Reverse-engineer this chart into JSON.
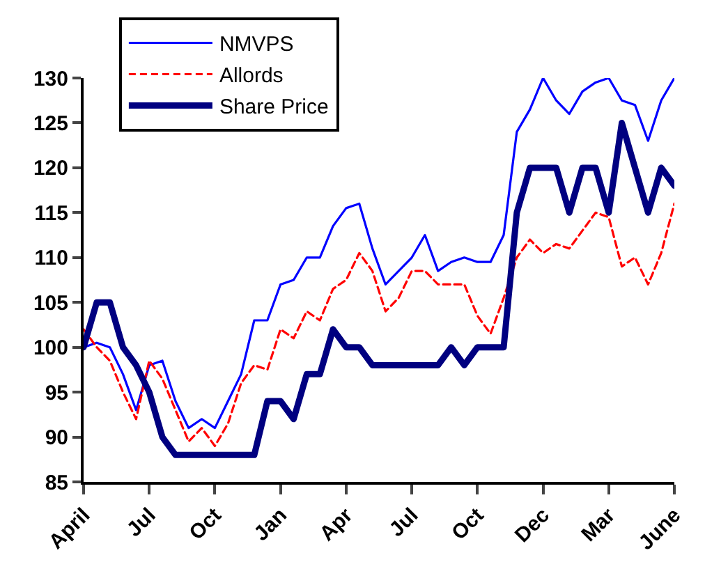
{
  "chart_data": {
    "type": "line",
    "legend": "top left",
    "grid": false,
    "marker": "none",
    "categories": [
      "April",
      null,
      null,
      null,
      null,
      "Jul",
      null,
      null,
      null,
      null,
      "Oct",
      null,
      null,
      null,
      null,
      "Jan",
      null,
      null,
      null,
      null,
      "Apr",
      null,
      null,
      null,
      null,
      "Jul",
      null,
      null,
      null,
      null,
      "Oct",
      null,
      null,
      null,
      null,
      "Dec",
      null,
      null,
      null,
      null,
      "Mar",
      null,
      null,
      null,
      null,
      "June"
    ],
    "ylim": [
      85,
      130
    ],
    "yticks": [
      85,
      90,
      95,
      100,
      105,
      110,
      115,
      120,
      125,
      130
    ],
    "series": [
      {
        "name": "NMVPS",
        "color": "#0000ff",
        "line_style": "solid",
        "values": [
          100,
          100.5,
          100,
          97,
          93,
          98,
          98.5,
          94,
          91,
          92,
          91,
          94,
          97,
          103,
          103,
          107,
          107.5,
          110,
          110,
          113.5,
          115.5,
          116,
          111,
          107,
          108.5,
          110,
          112.5,
          108.5,
          109.5,
          110,
          109.5,
          109.5,
          112.5,
          124,
          126.5,
          130,
          127.5,
          126,
          128.5,
          129.5,
          130,
          127.5,
          127,
          123,
          127.5,
          130
        ]
      },
      {
        "name": "Allords",
        "color": "#ff0000",
        "line_style": "dashed",
        "values": [
          102,
          100,
          98.5,
          95,
          92,
          98.5,
          96.5,
          93,
          89.5,
          91,
          89,
          91.5,
          96,
          98,
          97.5,
          102,
          101,
          104,
          103,
          106.5,
          107.5,
          110.5,
          108.5,
          104,
          105.5,
          108.5,
          108.5,
          107,
          107,
          107,
          103.5,
          101.5,
          105.5,
          110,
          112,
          110.5,
          111.5,
          111,
          113,
          115,
          114.5,
          109,
          110,
          107,
          110.5,
          116
        ]
      },
      {
        "name": "Share Price",
        "color": "#000080",
        "line_style": "solid",
        "values": [
          100,
          105,
          105,
          100,
          98,
          95,
          90,
          88,
          88,
          88,
          88,
          88,
          88,
          88,
          94,
          94,
          92,
          97,
          97,
          102,
          100,
          100,
          98,
          98,
          98,
          98,
          98,
          98,
          100,
          98,
          100,
          100,
          100,
          115,
          120,
          120,
          120,
          115,
          120,
          120,
          115,
          125,
          120,
          115,
          120,
          118
        ]
      }
    ]
  }
}
